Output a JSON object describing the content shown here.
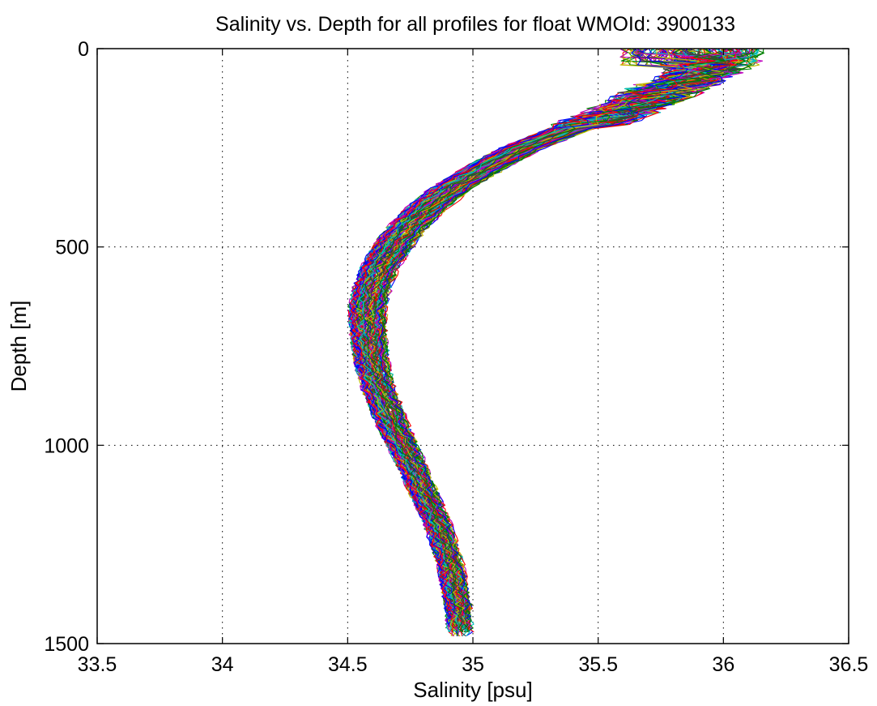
{
  "chart_data": {
    "type": "line",
    "title": "Salinity vs. Depth for all profiles for float WMOId: 3900133",
    "xlabel": "Salinity [psu]",
    "ylabel": "Depth [m]",
    "xlim": [
      33.5,
      36.5
    ],
    "ylim": [
      0,
      1500
    ],
    "y_axis_reversed": true,
    "grid": true,
    "grid_style": "dotted",
    "legend": "none",
    "x_ticks": [
      "33.5",
      "34",
      "34.5",
      "35",
      "35.5",
      "36",
      "36.5"
    ],
    "x_tick_values": [
      33.5,
      34.0,
      34.5,
      35.0,
      35.5,
      36.0,
      36.5
    ],
    "y_ticks": [
      "0",
      "500",
      "1000",
      "1500"
    ],
    "y_tick_values": [
      0,
      500,
      1000,
      1500
    ],
    "series_colors": [
      "#0000ff",
      "#008000",
      "#ff0000",
      "#00bfbf",
      "#bf00bf",
      "#bfbf00",
      "#404040"
    ],
    "mean_profile": {
      "depth": [
        5,
        25,
        50,
        75,
        100,
        150,
        200,
        250,
        300,
        350,
        400,
        450,
        500,
        550,
        600,
        650,
        700,
        750,
        800,
        850,
        900,
        950,
        1000,
        1100,
        1200,
        1300,
        1400,
        1480
      ],
      "salinity": [
        35.9,
        35.95,
        35.9,
        35.85,
        35.75,
        35.6,
        35.4,
        35.2,
        35.05,
        34.92,
        34.82,
        34.74,
        34.68,
        34.63,
        34.6,
        34.58,
        34.58,
        34.59,
        34.6,
        34.62,
        34.65,
        34.68,
        34.72,
        34.79,
        34.86,
        34.91,
        34.94,
        34.95
      ]
    },
    "profile_count": 150
  }
}
